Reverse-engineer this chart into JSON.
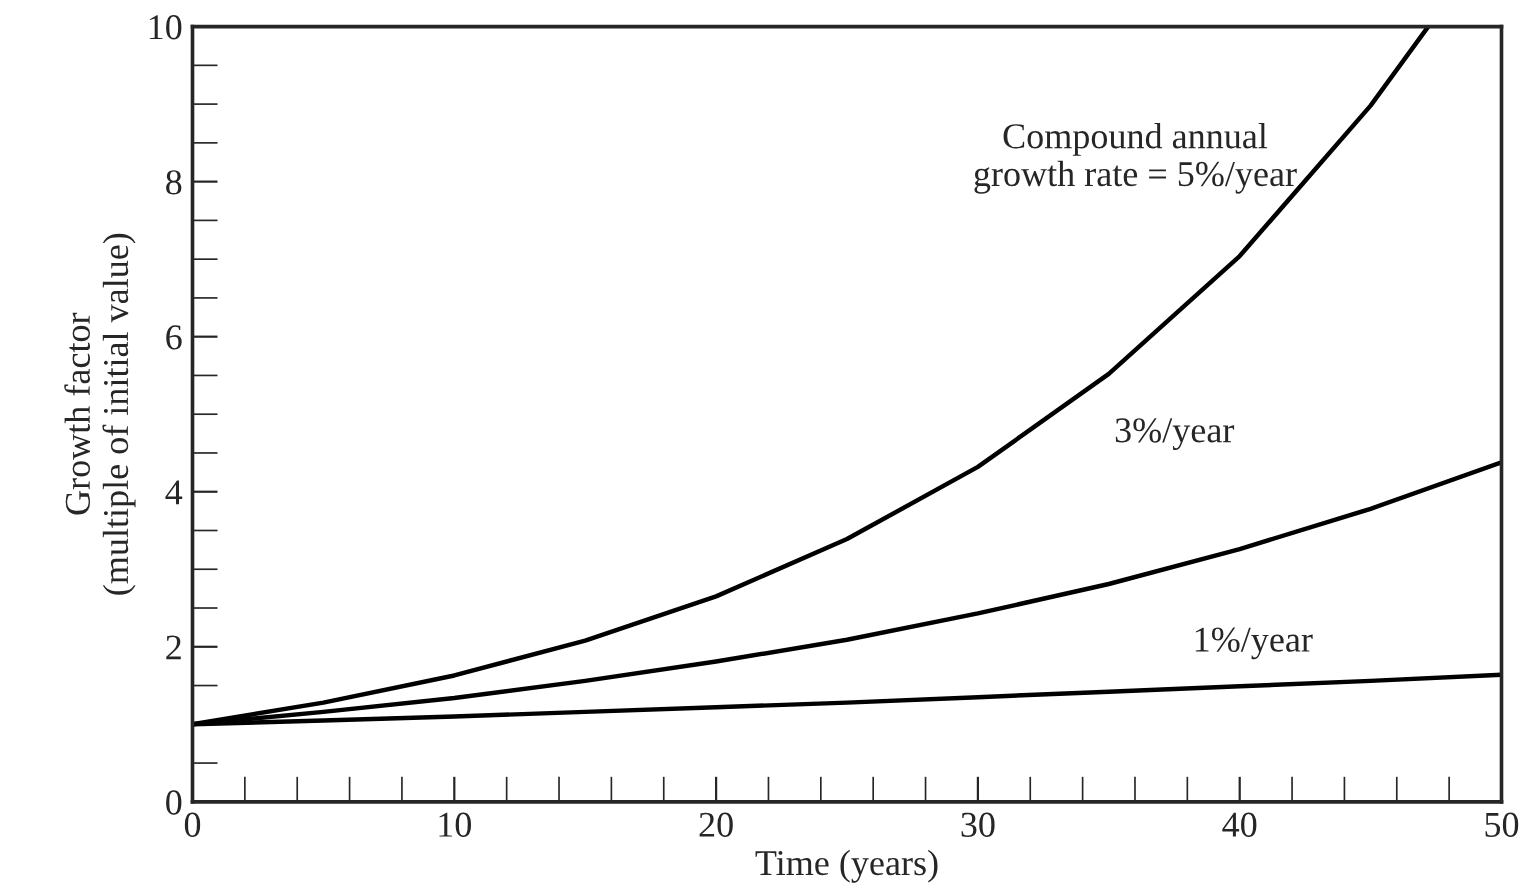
{
  "chart_data": {
    "type": "line",
    "xlabel": "Time (years)",
    "ylabel": "Growth factor\n(multiple of initial value)",
    "series": [
      {
        "color": "#000000",
        "x": [
          0,
          5,
          10,
          15,
          20,
          25,
          30,
          35,
          40,
          45,
          50
        ],
        "values": [
          1,
          1.05,
          1.1,
          1.16,
          1.22,
          1.28,
          1.35,
          1.42,
          1.49,
          1.56,
          1.64
        ]
      },
      {
        "color": "#000000",
        "x": [
          0,
          5,
          10,
          15,
          20,
          25,
          30,
          35,
          40,
          45,
          50
        ],
        "values": [
          1,
          1.16,
          1.34,
          1.56,
          1.81,
          2.09,
          2.43,
          2.81,
          3.26,
          3.78,
          4.38
        ]
      },
      {
        "color": "#000000",
        "x": [
          0,
          5,
          10,
          15,
          20,
          25,
          30,
          35,
          40,
          45,
          47.2
        ],
        "values": [
          1,
          1.28,
          1.63,
          2.08,
          2.65,
          3.39,
          4.32,
          5.52,
          7.04,
          8.98,
          10
        ]
      }
    ],
    "annotations": [
      "Compound annual\ngrowth rate = 5%/year",
      "3%/year",
      "1%/year"
    ],
    "xlim": [
      0,
      50
    ],
    "xticks": [
      0,
      10,
      20,
      30,
      40,
      50
    ],
    "ylim": [
      0,
      10
    ],
    "yticks": [
      0,
      2,
      4,
      6,
      8,
      10
    ],
    "grid": false,
    "marker": "none",
    "line_style": "solid"
  }
}
